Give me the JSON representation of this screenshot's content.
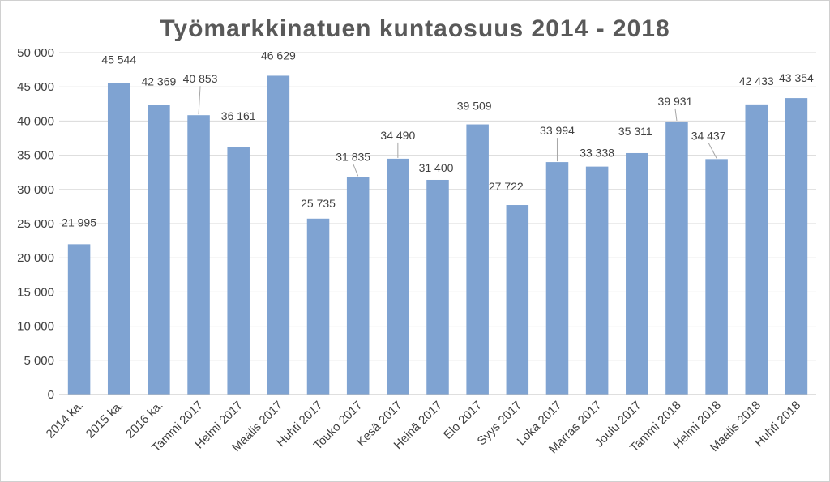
{
  "chart_data": {
    "type": "bar",
    "title": "Työmarkkinatuen kuntaosuus 2014 - 2018",
    "xlabel": "",
    "ylabel": "",
    "ylim": [
      0,
      50000
    ],
    "yticks": [
      0,
      5000,
      10000,
      15000,
      20000,
      25000,
      30000,
      35000,
      40000,
      45000,
      50000
    ],
    "ytick_labels": [
      "0",
      "5 000",
      "10 000",
      "15 000",
      "20 000",
      "25 000",
      "30 000",
      "35 000",
      "40 000",
      "45 000",
      "50 000"
    ],
    "categories": [
      "2014 ka.",
      "2015 ka.",
      "2016 ka.",
      "Tammi 2017",
      "Helmi 2017",
      "Maalis 2017",
      "Huhti 2017",
      "Touko 2017",
      "Kesä 2017",
      "Heinä 2017",
      "Elo 2017",
      "Syys 2017",
      "Loka 2017",
      "Marras 2017",
      "Joulu 2017",
      "Tammi 2018",
      "Helmi 2018",
      "Maalis 2018",
      "Huhti 2018"
    ],
    "values": [
      21995,
      45544,
      42369,
      40853,
      36161,
      46629,
      25735,
      31835,
      34490,
      31400,
      39509,
      27722,
      33994,
      33338,
      35311,
      39931,
      34437,
      42433,
      43354
    ],
    "value_labels": [
      "21 995",
      "45 544",
      "42 369",
      "40 853",
      "36 161",
      "46 629",
      "25 735",
      "31 835",
      "34 490",
      "31 400",
      "39 509",
      "27 722",
      "33 994",
      "33 338",
      "35 311",
      "39 931",
      "34 437",
      "42 433",
      "43 354"
    ],
    "grid": true,
    "legend": "none",
    "bar_color": "#7fa3d2"
  }
}
